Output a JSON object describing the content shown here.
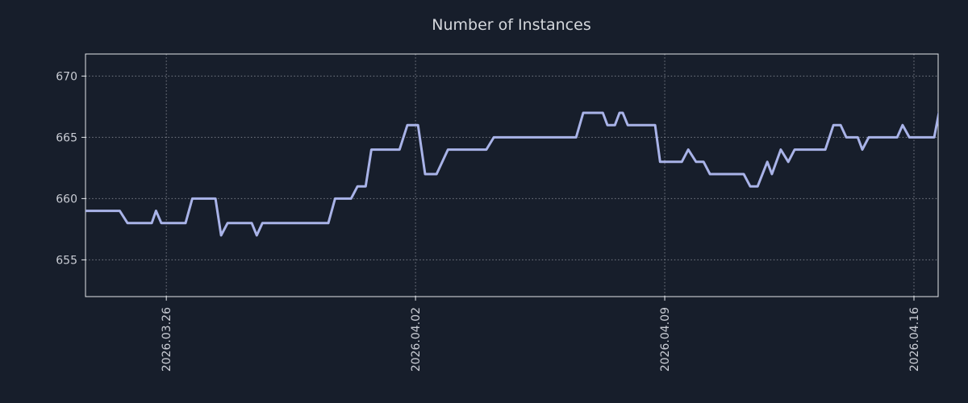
{
  "chart_data": {
    "type": "line",
    "title": "Number of Instances",
    "xlabel": "",
    "ylabel": "",
    "x_unit": "days relative to 2026.03.26",
    "xlim": [
      -2.27,
      21.68
    ],
    "ylim": [
      652.0,
      671.8
    ],
    "x_ticks": [
      {
        "pos": 0,
        "label": "2026.03.26"
      },
      {
        "pos": 7,
        "label": "2026.04.02"
      },
      {
        "pos": 14,
        "label": "2026.04.09"
      },
      {
        "pos": 21,
        "label": "2026.04.16"
      }
    ],
    "y_ticks": [
      655,
      660,
      665,
      670
    ],
    "grid": true,
    "grid_style": "dotted",
    "legend": false,
    "series": [
      {
        "name": "instances",
        "color": "#a9b3e8",
        "points": [
          [
            -2.27,
            659
          ],
          [
            -1.31,
            659
          ],
          [
            -1.09,
            658
          ],
          [
            -0.41,
            658
          ],
          [
            -0.29,
            659
          ],
          [
            -0.14,
            658
          ],
          [
            0.54,
            658
          ],
          [
            0.73,
            660
          ],
          [
            1.38,
            660
          ],
          [
            1.54,
            657
          ],
          [
            1.72,
            658
          ],
          [
            2.4,
            658
          ],
          [
            2.54,
            657
          ],
          [
            2.7,
            658
          ],
          [
            4.55,
            658
          ],
          [
            4.74,
            660
          ],
          [
            5.19,
            660
          ],
          [
            5.37,
            661
          ],
          [
            5.6,
            661
          ],
          [
            5.76,
            664
          ],
          [
            6.55,
            664
          ],
          [
            6.77,
            666
          ],
          [
            7.07,
            666
          ],
          [
            7.27,
            662
          ],
          [
            7.59,
            662
          ],
          [
            7.91,
            664
          ],
          [
            8.99,
            664
          ],
          [
            9.2,
            665
          ],
          [
            11.51,
            665
          ],
          [
            11.71,
            667
          ],
          [
            12.26,
            667
          ],
          [
            12.39,
            666
          ],
          [
            12.6,
            666
          ],
          [
            12.73,
            667
          ],
          [
            12.82,
            667
          ],
          [
            12.96,
            666
          ],
          [
            13.73,
            666
          ],
          [
            13.87,
            663
          ],
          [
            14.48,
            663
          ],
          [
            14.66,
            664
          ],
          [
            14.88,
            663
          ],
          [
            15.09,
            663
          ],
          [
            15.27,
            662
          ],
          [
            16.22,
            662
          ],
          [
            16.4,
            661
          ],
          [
            16.61,
            661
          ],
          [
            16.88,
            663
          ],
          [
            17.01,
            662
          ],
          [
            17.26,
            664
          ],
          [
            17.47,
            663
          ],
          [
            17.65,
            664
          ],
          [
            18.51,
            664
          ],
          [
            18.74,
            666
          ],
          [
            18.94,
            666
          ],
          [
            19.1,
            665
          ],
          [
            19.42,
            665
          ],
          [
            19.55,
            664
          ],
          [
            19.73,
            665
          ],
          [
            20.53,
            665
          ],
          [
            20.68,
            666
          ],
          [
            20.87,
            665
          ],
          [
            21.57,
            665
          ],
          [
            21.7,
            667
          ]
        ]
      }
    ],
    "style": {
      "background": "#171e2b",
      "text_color": "#c9ccd4",
      "title_color": "#d4d7dc",
      "border_color": "#e3e6ea",
      "grid_color": "#c9ccd4",
      "line_color": "#a9b3e8"
    }
  }
}
